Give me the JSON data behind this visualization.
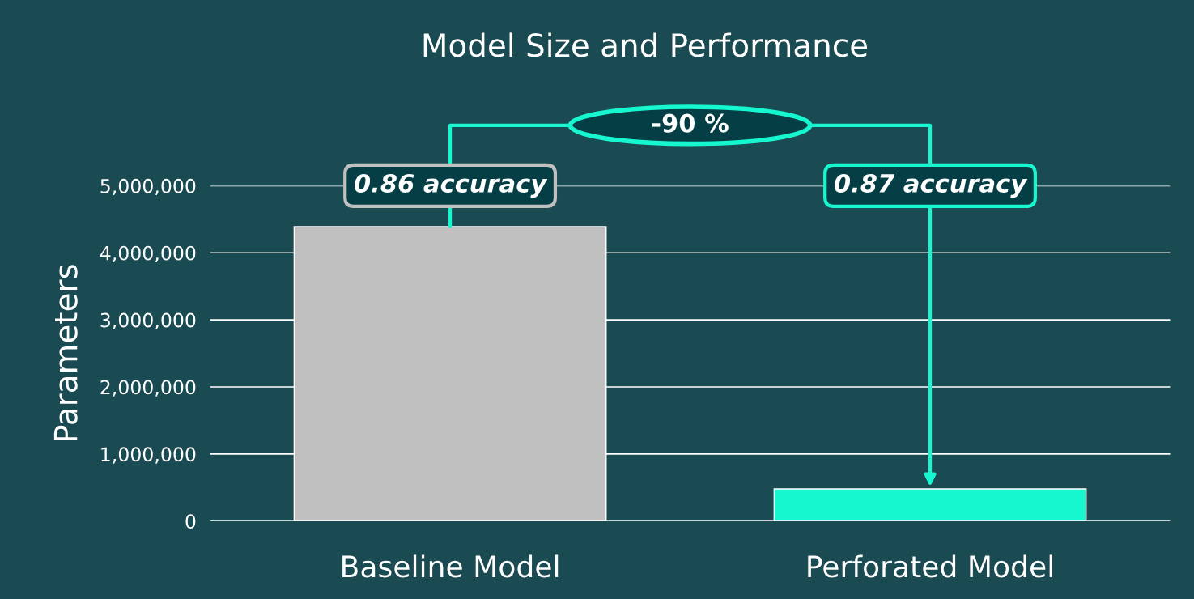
{
  "chart_data": {
    "type": "bar",
    "title": "Model Size and Performance",
    "ylabel": "Parameters",
    "categories": [
      "Baseline Model",
      "Perforated Model"
    ],
    "values": [
      4390000,
      480000
    ],
    "colors": [
      "#c0c0c0",
      "#16f7d0"
    ],
    "ylim": [
      0,
      5000000
    ],
    "yticks": [
      {
        "value": 0,
        "label": "0"
      },
      {
        "value": 1000000,
        "label": "1,000,000"
      },
      {
        "value": 2000000,
        "label": "2,000,000"
      },
      {
        "value": 3000000,
        "label": "3,000,000"
      },
      {
        "value": 4000000,
        "label": "4,000,000"
      },
      {
        "value": 5000000,
        "label": "5,000,000"
      }
    ],
    "grid": "y",
    "annotations": [
      "0.86 accuracy",
      "0.87 accuracy",
      "-90 %"
    ]
  }
}
